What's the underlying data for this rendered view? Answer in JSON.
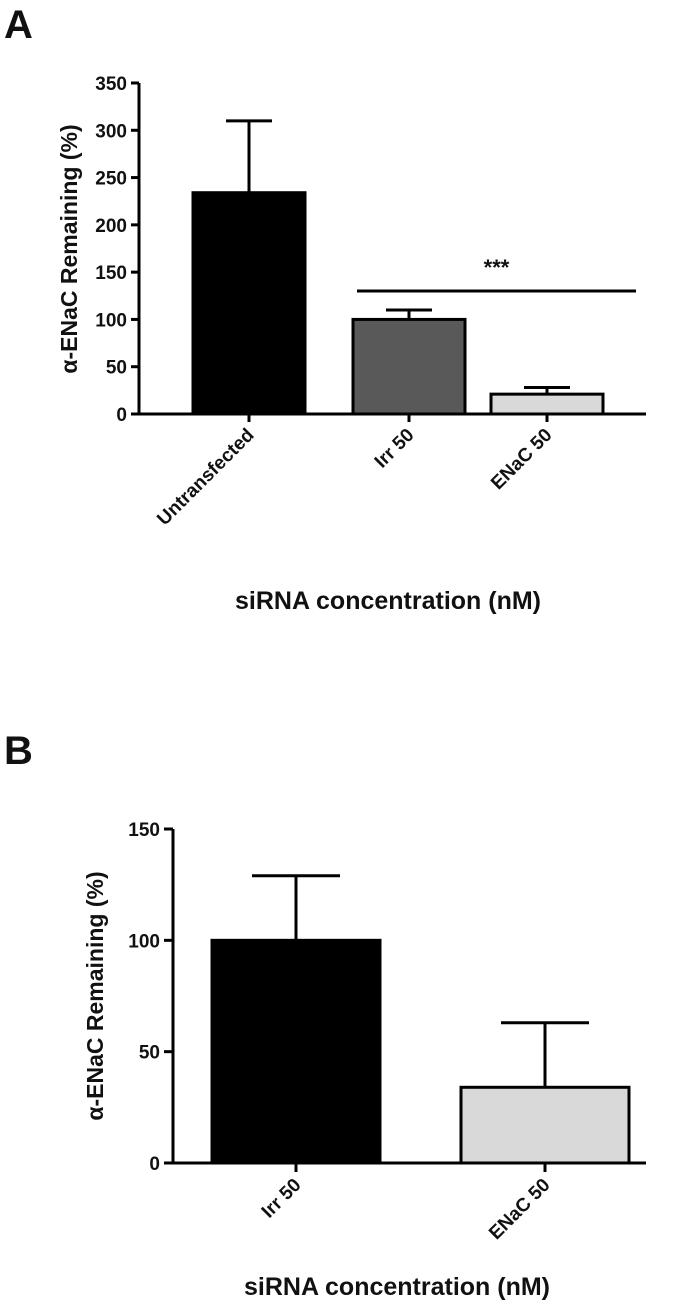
{
  "chart_data": [
    {
      "panel": "A",
      "type": "bar",
      "categories": [
        "Untransfected",
        "Irr 50",
        "ENaC 50"
      ],
      "values": [
        234,
        100,
        21
      ],
      "error_upper": [
        310,
        110,
        28
      ],
      "colors": [
        "#000000",
        "#595959",
        "#d9d9d9"
      ],
      "ylabel": "α-ENaC Remaining (%)",
      "xlabel": "siRNA concentration (nM)",
      "ylim": [
        0,
        350
      ],
      "yticks": [
        0,
        50,
        100,
        150,
        200,
        250,
        300,
        350
      ],
      "significance": {
        "from": 1,
        "to": 2,
        "y": 130,
        "label": "***"
      }
    },
    {
      "panel": "B",
      "type": "bar",
      "categories": [
        "Irr 50",
        "ENaC 50"
      ],
      "values": [
        100,
        34
      ],
      "error_upper": [
        129,
        63
      ],
      "colors": [
        "#000000",
        "#d9d9d9"
      ],
      "ylabel": "α-ENaC Remaining (%)",
      "xlabel": "siRNA concentration (nM)",
      "ylim": [
        0,
        150
      ],
      "yticks": [
        0,
        50,
        100,
        150
      ]
    }
  ]
}
